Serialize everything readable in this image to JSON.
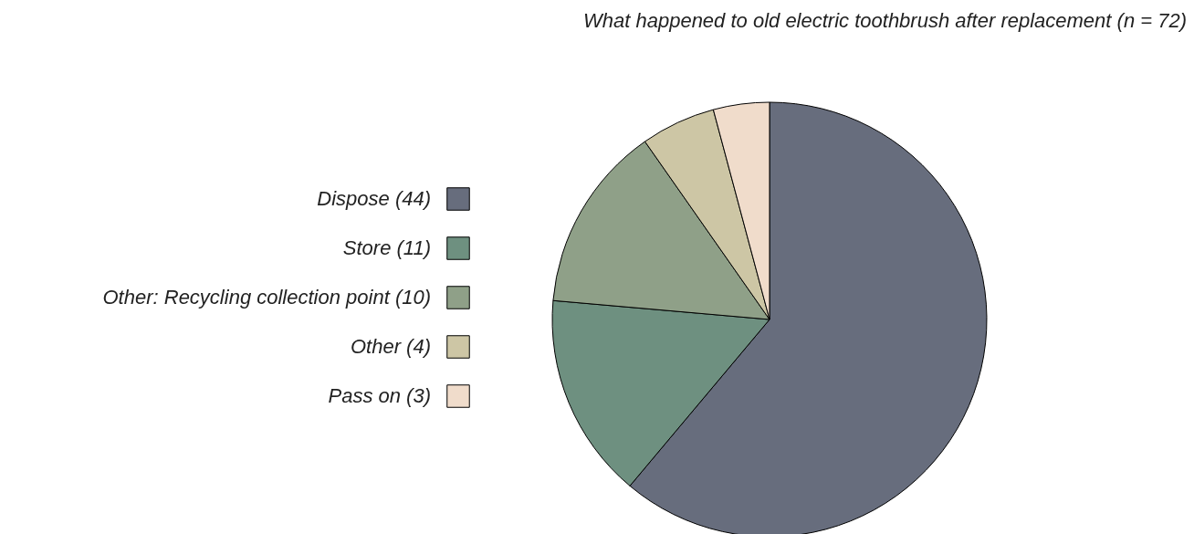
{
  "chart_data": {
    "type": "pie",
    "title": "What happened to old electric toothbrush after replacement (n = 72)",
    "categories": [
      "Dispose (44)",
      "Store (11)",
      "Other: Recycling collection point (10)",
      "Other (4)",
      "Pass on (3)"
    ],
    "values": [
      44,
      11,
      10,
      4,
      3
    ],
    "colors": [
      "#676d7d",
      "#6e9080",
      "#8fa088",
      "#cdc6a5",
      "#f0dccb"
    ],
    "legend": "left"
  }
}
